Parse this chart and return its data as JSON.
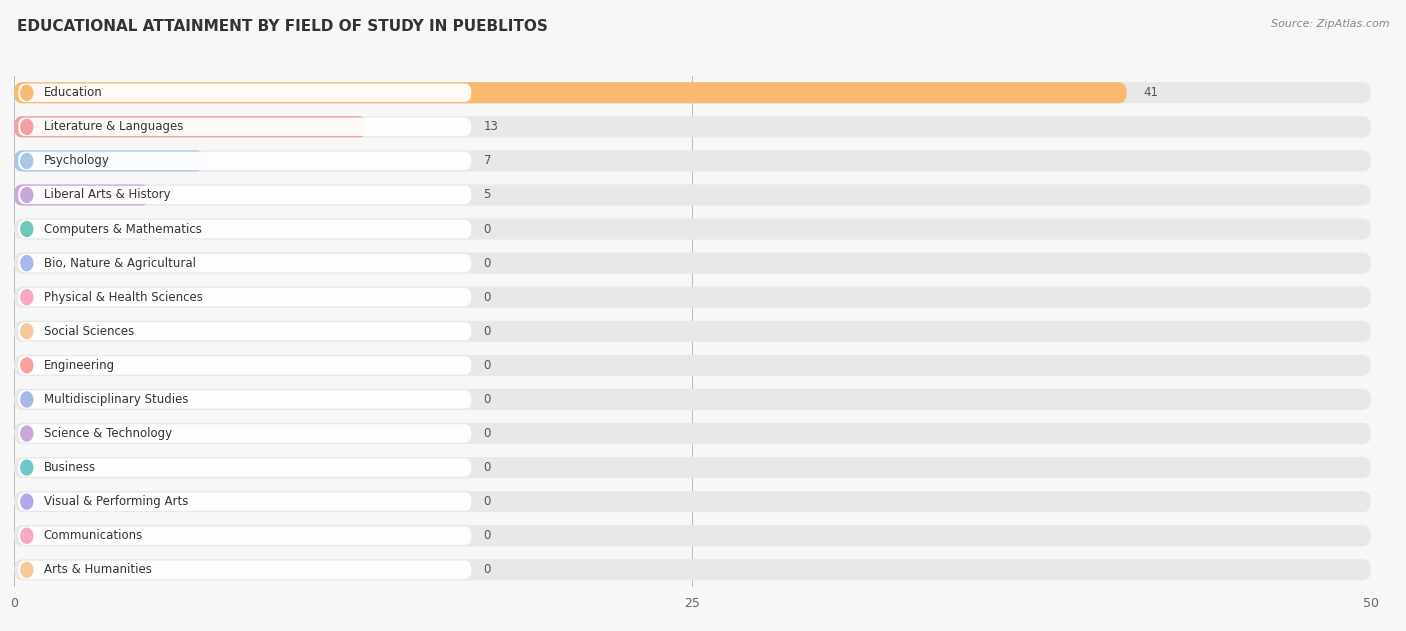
{
  "title": "EDUCATIONAL ATTAINMENT BY FIELD OF STUDY IN PUEBLITOS",
  "source": "Source: ZipAtlas.com",
  "categories": [
    "Education",
    "Literature & Languages",
    "Psychology",
    "Liberal Arts & History",
    "Computers & Mathematics",
    "Bio, Nature & Agricultural",
    "Physical & Health Sciences",
    "Social Sciences",
    "Engineering",
    "Multidisciplinary Studies",
    "Science & Technology",
    "Business",
    "Visual & Performing Arts",
    "Communications",
    "Arts & Humanities"
  ],
  "values": [
    41,
    13,
    7,
    5,
    0,
    0,
    0,
    0,
    0,
    0,
    0,
    0,
    0,
    0,
    0
  ],
  "bar_colors": [
    "#F9B96E",
    "#F4A0A0",
    "#A8C8E8",
    "#C8A8D8",
    "#70C8B8",
    "#A8B8E8",
    "#F8A8C0",
    "#F8C898",
    "#F8A0A0",
    "#A8B8E8",
    "#C8A8D8",
    "#70C8C8",
    "#B0A8E8",
    "#F8A8C0",
    "#F8C898"
  ],
  "xlim": [
    0,
    50
  ],
  "xticks": [
    0,
    25,
    50
  ],
  "bg_color": "#f7f7f7",
  "bar_bg_color": "#e8e8e8",
  "white_label_bg": "#ffffff",
  "title_fontsize": 11,
  "label_fontsize": 8.5,
  "value_fontsize": 8.5,
  "source_fontsize": 8
}
